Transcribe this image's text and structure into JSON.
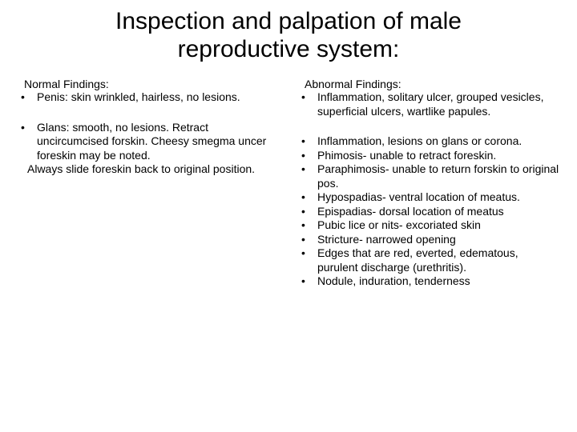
{
  "title": "Inspection and palpation of male reproductive system:",
  "left": {
    "heading": "Normal Findings:",
    "group1": {
      "item1": "Penis: skin wrinkled, hairless, no lesions."
    },
    "group2": {
      "item1": "Glans: smooth, no lesions. Retract uncircumcised forskin. Cheesy smegma uncer foreskin may be noted.",
      "note": "Always slide foreskin back to original position."
    }
  },
  "right": {
    "heading": "Abnormal Findings:",
    "group1": {
      "item1": "Inflammation, solitary ulcer, grouped vesicles, superficial ulcers, wartlike papules."
    },
    "group2": {
      "item1": "Inflammation, lesions on glans or corona.",
      "item2": "Phimosis- unable to retract foreskin.",
      "item3": "Paraphimosis- unable to return forskin to original pos.",
      "item4": "Hypospadias- ventral location of meatus.",
      "item5": "Epispadias- dorsal location of meatus",
      "item6": "Pubic lice or nits- excoriated skin",
      "item7": "Stricture- narrowed opening",
      "item8": "Edges that are red, everted, edematous, purulent discharge (urethritis).",
      "item9": "Nodule, induration, tenderness"
    }
  },
  "style": {
    "background_color": "#ffffff",
    "text_color": "#000000",
    "title_fontsize": 30,
    "body_fontsize": 14,
    "font_family": "Arial"
  }
}
